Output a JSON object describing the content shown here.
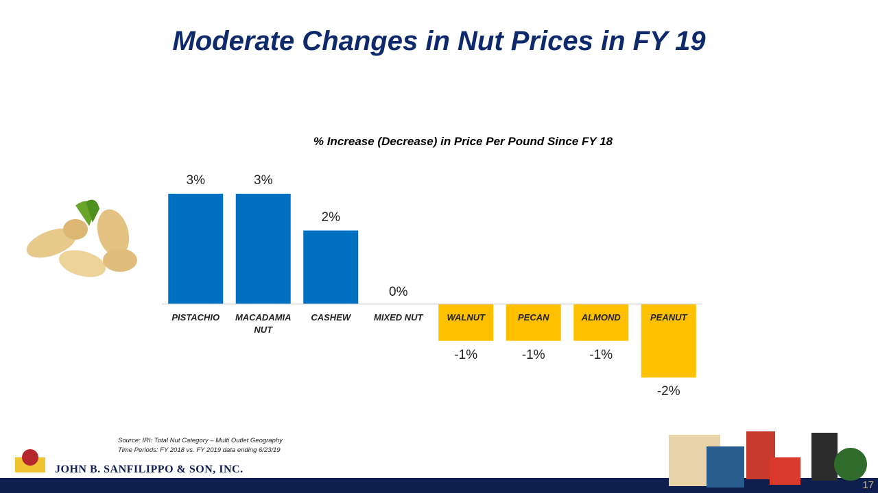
{
  "title": "Moderate Changes in Nut Prices in FY 19",
  "chart_data": {
    "type": "bar",
    "title": "% Increase (Decrease) in Price Per Pound Since FY 18",
    "categories": [
      "PISTACHIO",
      "MACADAMIA NUT",
      "CASHEW",
      "MIXED NUT",
      "WALNUT",
      "PECAN",
      "ALMOND",
      "PEANUT"
    ],
    "values": [
      3,
      3,
      2,
      0,
      -1,
      -1,
      -1,
      -2
    ],
    "value_labels": [
      "3%",
      "3%",
      "2%",
      "0%",
      "-1%",
      "-1%",
      "-1%",
      "-2%"
    ],
    "colors": [
      "#0070c0",
      "#0070c0",
      "#0070c0",
      "#0070c0",
      "#ffc000",
      "#ffc000",
      "#ffc000",
      "#ffc000"
    ]
  },
  "footer": {
    "source": "Source: IRI: Total Nut Category – Multi Outlet Geography",
    "time_periods": "Time Periods: FY 2018 vs. FY 2019  data ending 6/23/19",
    "company": "JOHN B. SANFILIPPO & SON, INC.",
    "page_number": "17"
  }
}
